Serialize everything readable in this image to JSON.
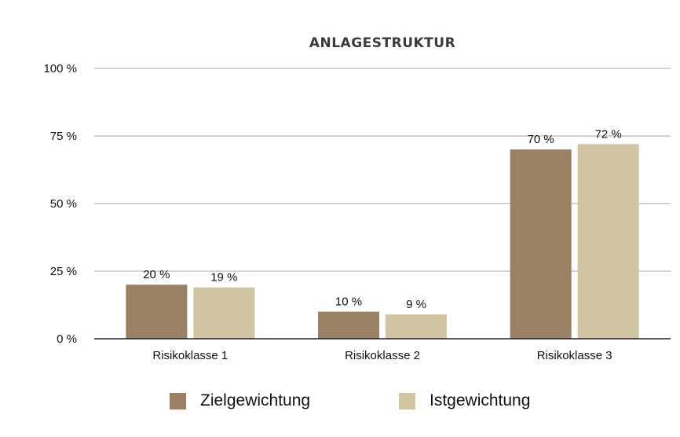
{
  "colors": {
    "ziel": "#9a8163",
    "ist": "#d1c4a2",
    "grid": "#b9b9b9",
    "axis": "#222222"
  },
  "chart_data": {
    "type": "bar",
    "title": "ANLAGESTRUKTUR",
    "categories": [
      "Risikoklasse 1",
      "Risikoklasse 2",
      "Risikoklasse 3"
    ],
    "series": [
      {
        "name": "Zielgewichtung",
        "values": [
          20,
          10,
          70
        ],
        "labels": [
          "20 %",
          "10 %",
          "70 %"
        ]
      },
      {
        "name": "Istgewichtung",
        "values": [
          19,
          9,
          72
        ],
        "labels": [
          "19 %",
          "9 %",
          "72 %"
        ]
      }
    ],
    "yticks": [
      "0 %",
      "25 %",
      "50 %",
      "75 %",
      "100 %"
    ],
    "ylim": [
      0,
      100
    ],
    "grid": true,
    "legend": "bottom"
  }
}
